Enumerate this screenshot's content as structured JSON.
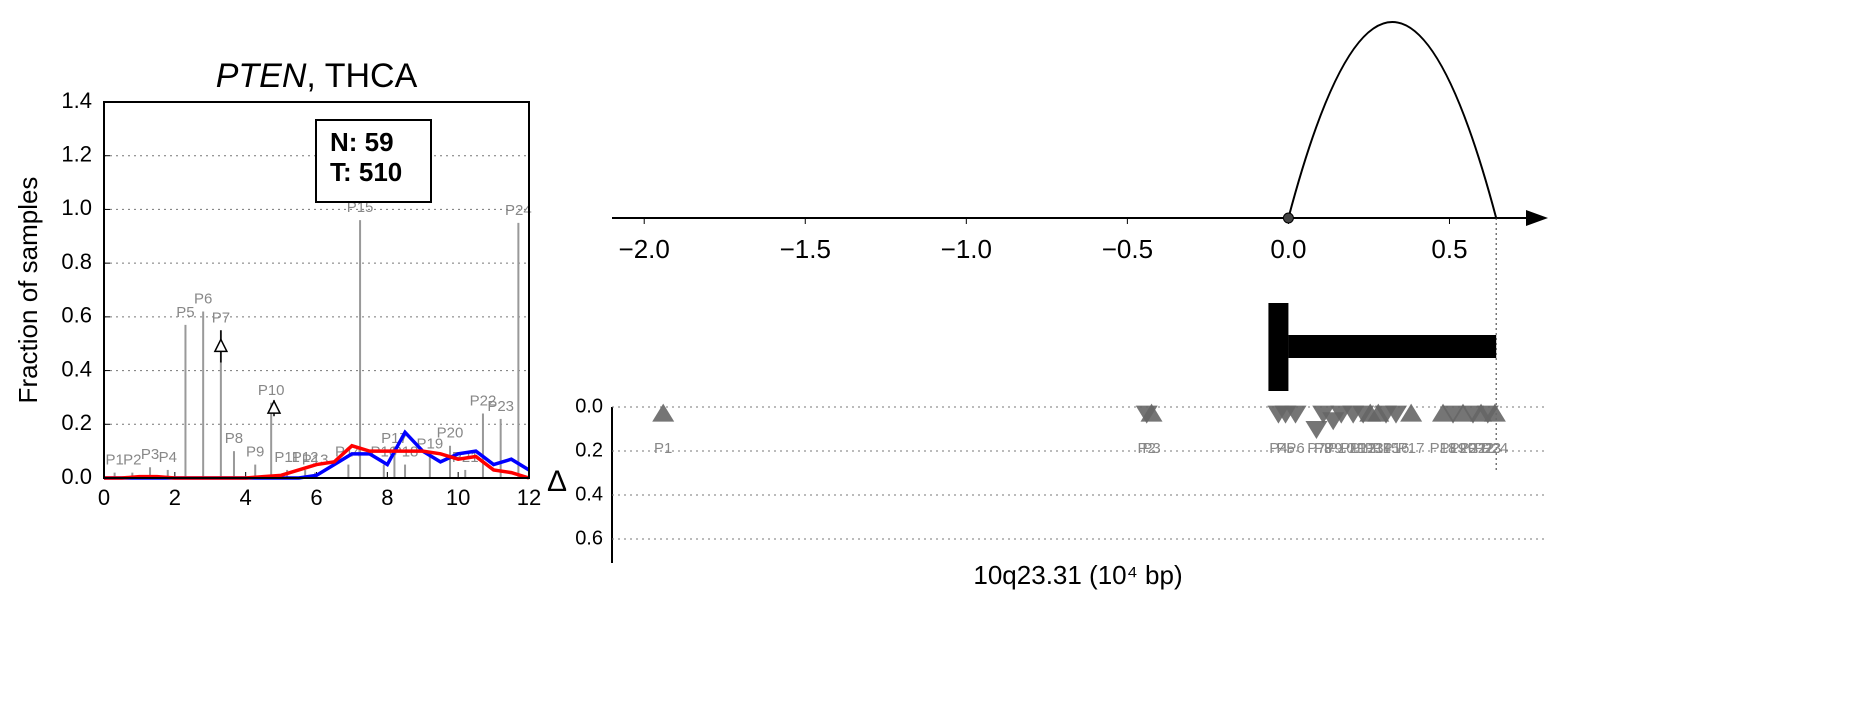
{
  "chart_data": [
    {
      "type": "line",
      "title": "PTEN, THCA",
      "ylabel": "Fraction of samples",
      "xlim": [
        0,
        12
      ],
      "ylim": [
        0,
        1.4
      ],
      "xticks": [
        0,
        2,
        4,
        6,
        8,
        10,
        12
      ],
      "yticks": [
        {
          "value": 0,
          "label": "0.0"
        },
        {
          "value": 0.2,
          "label": "0.2"
        },
        {
          "value": 0.4,
          "label": "0.4"
        },
        {
          "value": 0.6,
          "label": "0.6"
        },
        {
          "value": 0.8,
          "label": "0.8"
        },
        {
          "value": 1.0,
          "label": "1.0"
        },
        {
          "value": 1.2,
          "label": "1.2"
        },
        {
          "value": 1.4,
          "label": "1.4"
        }
      ],
      "grid": true,
      "annotation": [
        "N: 59",
        "T: 510"
      ],
      "x": [
        0,
        0.5,
        1,
        1.5,
        2,
        2.5,
        3,
        3.5,
        4,
        4.5,
        5,
        5.5,
        6,
        6.5,
        7,
        7.5,
        8,
        8.5,
        9,
        9.5,
        10,
        10.5,
        11,
        11.5,
        12
      ],
      "series": [
        {
          "color": "#0000ff",
          "values": [
            0,
            0,
            0,
            0,
            0,
            0,
            0,
            0,
            0,
            0,
            0,
            0,
            0.01,
            0.05,
            0.09,
            0.09,
            0.05,
            0.17,
            0.1,
            0.06,
            0.09,
            0.1,
            0.05,
            0.07,
            0.03
          ]
        },
        {
          "color": "#ff0000",
          "values": [
            0,
            0,
            0.005,
            0.005,
            0,
            0,
            0,
            0,
            0,
            0.005,
            0.01,
            0.03,
            0.05,
            0.06,
            0.12,
            0.1,
            0.1,
            0.1,
            0.1,
            0.09,
            0.07,
            0.08,
            0.03,
            0.02,
            0
          ]
        }
      ],
      "bars": {
        "color": "#999999",
        "labels": [
          "P1",
          "P2",
          "P3",
          "P4",
          "P5",
          "P6",
          "P7",
          "P8",
          "P9",
          "P10",
          "P11",
          "P12",
          "P13",
          "P14",
          "P15",
          "P16",
          "P17",
          "P18",
          "P19",
          "P20",
          "P21",
          "P22",
          "P23",
          "P24"
        ],
        "x": [
          0.3,
          0.8,
          1.3,
          1.8,
          2.3,
          2.8,
          3.3,
          3.67,
          4.27,
          4.72,
          5.17,
          5.68,
          5.96,
          6.9,
          7.23,
          7.9,
          8.2,
          8.5,
          9.2,
          9.77,
          10.2,
          10.7,
          11.2,
          11.7
        ],
        "values": [
          0.02,
          0.02,
          0.04,
          0.03,
          0.57,
          0.62,
          0.55,
          0.1,
          0.05,
          0.28,
          0.03,
          0.03,
          0.02,
          0.05,
          0.96,
          0.05,
          0.1,
          0.05,
          0.08,
          0.12,
          0.03,
          0.24,
          0.22,
          0.95
        ]
      },
      "deltas": {
        "x": [
          3.3,
          4.8
        ],
        "values": [
          0.49,
          0.26
        ],
        "err": [
          0.06,
          0.03
        ]
      }
    },
    {
      "type": "interval",
      "xlim": [
        -2.1,
        0.75
      ],
      "xticks": [
        {
          "value": -2.0,
          "label": "−2.0"
        },
        {
          "value": -1.5,
          "label": "−1.5"
        },
        {
          "value": -1.0,
          "label": "−1.0"
        },
        {
          "value": -0.5,
          "label": "−0.5"
        },
        {
          "value": 0,
          "label": "0.0"
        },
        {
          "value": 0.5,
          "label": "0.5"
        }
      ],
      "interval": [
        0,
        0.645
      ]
    },
    {
      "type": "scatter",
      "xlabel": "10q23.31 (10⁴ bp)",
      "ylabel": "Δ",
      "xlim": [
        -2.1,
        0.75
      ],
      "ylim": [
        0,
        0.7
      ],
      "invert_y": true,
      "grid": true,
      "color": "#666666",
      "yticks": [
        {
          "value": 0,
          "label": "0.0"
        },
        {
          "value": 0.2,
          "label": "0.2"
        },
        {
          "value": 0.4,
          "label": "0.4"
        },
        {
          "value": 0.6,
          "label": "0.6"
        }
      ],
      "labels": [
        "P1",
        "P2",
        "P3",
        "P4",
        "P5",
        "P6",
        "P7",
        "P8",
        "P9",
        "P10",
        "P11",
        "P12",
        "P13",
        "P14",
        "P15",
        "P16",
        "P17",
        "P18",
        "P19",
        "P20",
        "P21",
        "P22",
        "P23",
        "P24"
      ],
      "x": [
        -1.941,
        -0.44,
        -0.425,
        -0.031,
        -0.009,
        0.022,
        0.087,
        0.108,
        0.139,
        0.164,
        0.201,
        0.232,
        0.254,
        0.279,
        0.303,
        0.334,
        0.381,
        0.48,
        0.511,
        0.542,
        0.573,
        0.598,
        0.619,
        0.641
      ],
      "values": [
        0.03,
        0.03,
        0.03,
        0.03,
        0.03,
        0.03,
        0.1,
        0.03,
        0.06,
        0.03,
        0.03,
        0.03,
        0.03,
        0.03,
        0.03,
        0.03,
        0.03,
        0.03,
        0.03,
        0.03,
        0.03,
        0.03,
        0.03,
        0.03
      ],
      "markers": [
        "^",
        "v",
        "^",
        "v",
        "v",
        "v",
        "v",
        "v",
        "v",
        "v",
        "v",
        "v",
        "^",
        "^",
        "v",
        "v",
        "^",
        "^",
        "v",
        "^",
        "v",
        "^",
        "v",
        "^"
      ]
    }
  ]
}
